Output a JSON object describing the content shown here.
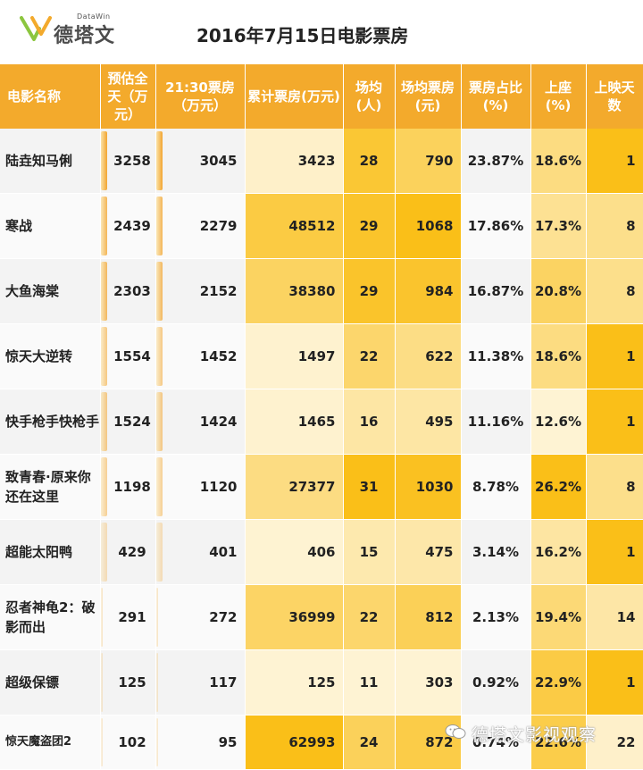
{
  "logo": {
    "subtitle": "DataWin",
    "text": "德塔文"
  },
  "title": "2016年7月15日电影票房",
  "columns": [
    "电影名称",
    "预估全天（万元）",
    "21:30票房（万元）",
    "累计票房(万元)",
    "场均(人)",
    "场均票房(元)",
    "票房占比(%)",
    "上座(%)",
    "上映天数"
  ],
  "rows": [
    {
      "name": "陆垚知马俐",
      "estimate": "3258",
      "box2130": "3045",
      "total": "3423",
      "avg_people": "28",
      "avg_box": "790",
      "share": "23.87%",
      "occupancy": "18.6%",
      "days": "1"
    },
    {
      "name": "寒战",
      "estimate": "2439",
      "box2130": "2279",
      "total": "48512",
      "avg_people": "29",
      "avg_box": "1068",
      "share": "17.86%",
      "occupancy": "17.3%",
      "days": "8"
    },
    {
      "name": "大鱼海棠",
      "estimate": "2303",
      "box2130": "2152",
      "total": "38380",
      "avg_people": "29",
      "avg_box": "984",
      "share": "16.87%",
      "occupancy": "20.8%",
      "days": "8"
    },
    {
      "name": "惊天大逆转",
      "estimate": "1554",
      "box2130": "1452",
      "total": "1497",
      "avg_people": "22",
      "avg_box": "622",
      "share": "11.38%",
      "occupancy": "18.6%",
      "days": "1"
    },
    {
      "name": "快手枪手快枪手",
      "estimate": "1524",
      "box2130": "1424",
      "total": "1465",
      "avg_people": "16",
      "avg_box": "495",
      "share": "11.16%",
      "occupancy": "12.6%",
      "days": "1"
    },
    {
      "name": "致青春·原来你还在这里",
      "estimate": "1198",
      "box2130": "1120",
      "total": "27377",
      "avg_people": "31",
      "avg_box": "1030",
      "share": "8.78%",
      "occupancy": "26.2%",
      "days": "8"
    },
    {
      "name": "超能太阳鸭",
      "estimate": "429",
      "box2130": "401",
      "total": "406",
      "avg_people": "15",
      "avg_box": "475",
      "share": "3.14%",
      "occupancy": "16.2%",
      "days": "1"
    },
    {
      "name": "忍者神龟2：破影而出",
      "estimate": "291",
      "box2130": "272",
      "total": "36999",
      "avg_people": "22",
      "avg_box": "812",
      "share": "2.13%",
      "occupancy": "19.4%",
      "days": "14"
    },
    {
      "name": "超级保镖",
      "estimate": "125",
      "box2130": "117",
      "total": "125",
      "avg_people": "11",
      "avg_box": "303",
      "share": "0.92%",
      "occupancy": "22.9%",
      "days": "1"
    },
    {
      "name": "惊天魔盗团2",
      "estimate": "102",
      "box2130": "95",
      "total": "62993",
      "avg_people": "24",
      "avg_box": "872",
      "share": "0.74%",
      "occupancy": "22.6%",
      "days": "22"
    }
  ],
  "watermark": "德塔文影视观察",
  "colors": {
    "header": "#f3aa2c",
    "heat_low": "#fff7df",
    "heat_high": "#f9b800"
  }
}
